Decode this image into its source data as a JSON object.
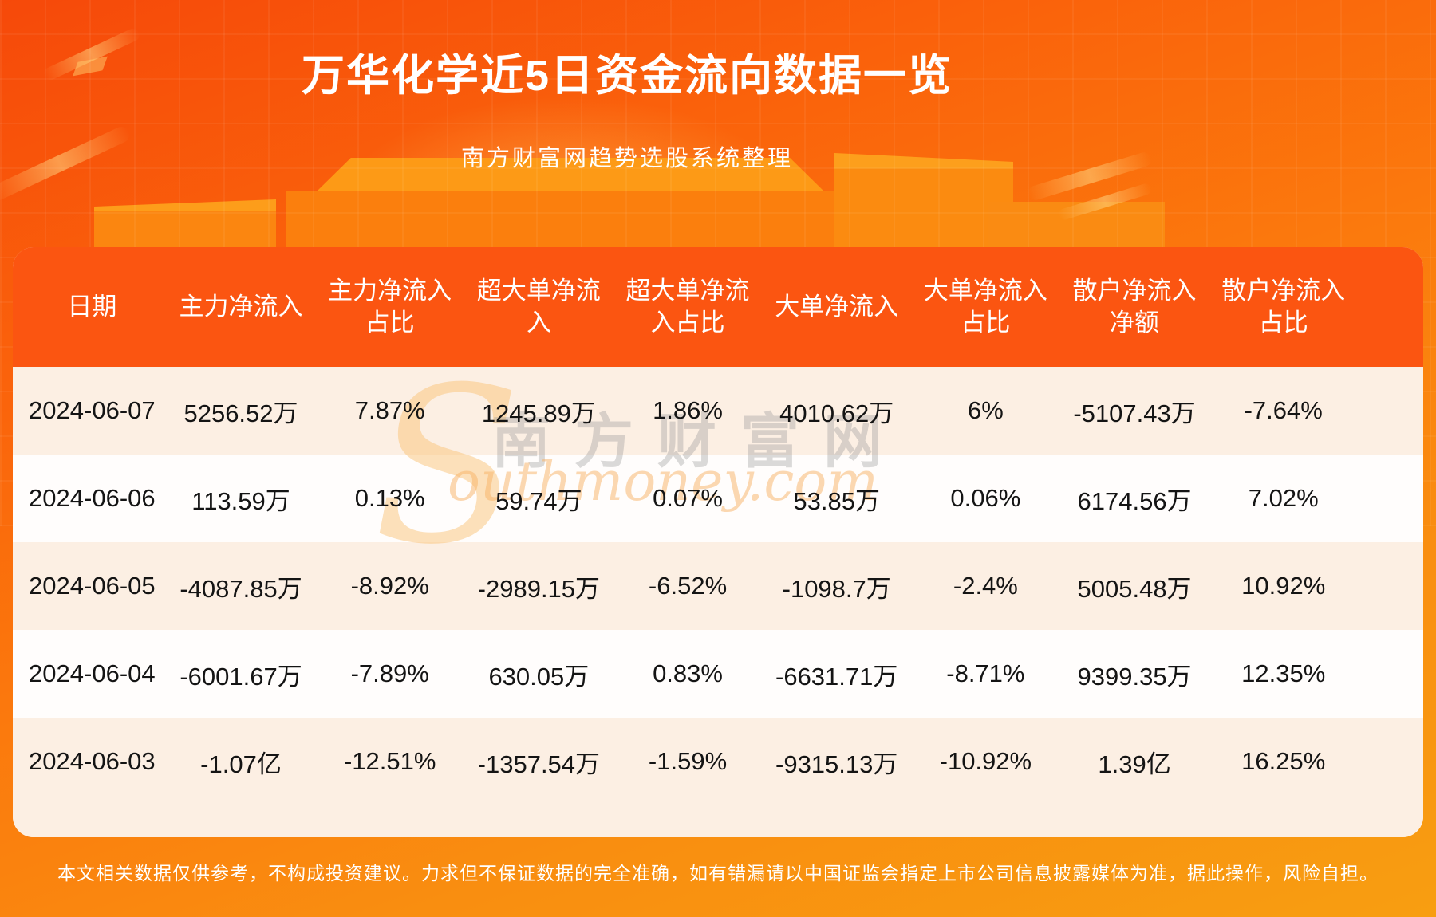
{
  "header": {
    "title": "万华化学近5日资金流向数据一览",
    "subtitle": "南方财富网趋势选股系统整理"
  },
  "table": {
    "columns": [
      {
        "line1": "日期",
        "line2": ""
      },
      {
        "line1": "主力净流入",
        "line2": ""
      },
      {
        "line1": "主力净流入",
        "line2": "占比"
      },
      {
        "line1": "超大单净流",
        "line2": "入"
      },
      {
        "line1": "超大单净流",
        "line2": "入占比"
      },
      {
        "line1": "大单净流入",
        "line2": ""
      },
      {
        "line1": "大单净流入",
        "line2": "占比"
      },
      {
        "line1": "散户净流入",
        "line2": "净额"
      },
      {
        "line1": "散户净流入",
        "line2": "占比"
      }
    ],
    "rows": [
      [
        "2024-06-07",
        "5256.52万",
        "7.87%",
        "1245.89万",
        "1.86%",
        "4010.62万",
        "6%",
        "-5107.43万",
        "-7.64%"
      ],
      [
        "2024-06-06",
        "113.59万",
        "0.13%",
        "59.74万",
        "0.07%",
        "53.85万",
        "0.06%",
        "6174.56万",
        "7.02%"
      ],
      [
        "2024-06-05",
        "-4087.85万",
        "-8.92%",
        "-2989.15万",
        "-6.52%",
        "-1098.7万",
        "-2.4%",
        "5005.48万",
        "10.92%"
      ],
      [
        "2024-06-04",
        "-6001.67万",
        "-7.89%",
        "630.05万",
        "0.83%",
        "-6631.71万",
        "-8.71%",
        "9399.35万",
        "12.35%"
      ],
      [
        "2024-06-03",
        "-1.07亿",
        "-12.51%",
        "-1357.54万",
        "-1.59%",
        "-9315.13万",
        "-10.92%",
        "1.39亿",
        "16.25%"
      ]
    ]
  },
  "chart_data": {
    "type": "table",
    "title": "万华化学近5日资金流向数据一览",
    "subtitle": "南方财富网趋势选股系统整理",
    "columns": [
      "日期",
      "主力净流入",
      "主力净流入占比",
      "超大单净流入",
      "超大单净流入占比",
      "大单净流入",
      "大单净流入占比",
      "散户净流入净额",
      "散户净流入占比"
    ],
    "rows": [
      [
        "2024-06-07",
        "5256.52万",
        "7.87%",
        "1245.89万",
        "1.86%",
        "4010.62万",
        "6%",
        "-5107.43万",
        "-7.64%"
      ],
      [
        "2024-06-06",
        "113.59万",
        "0.13%",
        "59.74万",
        "0.07%",
        "53.85万",
        "0.06%",
        "6174.56万",
        "7.02%"
      ],
      [
        "2024-06-05",
        "-4087.85万",
        "-8.92%",
        "-2989.15万",
        "-6.52%",
        "-1098.7万",
        "-2.4%",
        "5005.48万",
        "10.92%"
      ],
      [
        "2024-06-04",
        "-6001.67万",
        "-7.89%",
        "630.05万",
        "0.83%",
        "-6631.71万",
        "-8.71%",
        "9399.35万",
        "12.35%"
      ],
      [
        "2024-06-03",
        "-1.07亿",
        "-12.51%",
        "-1357.54万",
        "-1.59%",
        "-9315.13万",
        "-10.92%",
        "1.39亿",
        "16.25%"
      ]
    ]
  },
  "watermark": {
    "swoosh": "S",
    "cn": "南方财富网",
    "en": "outhmoney.com"
  },
  "footer": {
    "disclaimer": "本文相关数据仅供参考，不构成投资建议。力求但不保证数据的完全准确，如有错漏请以中国证监会指定上市公司信息披露媒体为准，据此操作，风险自担。"
  },
  "colors": {
    "bg_top": "#f6490a",
    "bg_bottom": "#f89e11",
    "table_header_bg": "#fb5511",
    "row_cream": "#fcefe3",
    "row_white": "#fffdfc",
    "text_dark": "#141414",
    "text_white": "#ffffff"
  }
}
